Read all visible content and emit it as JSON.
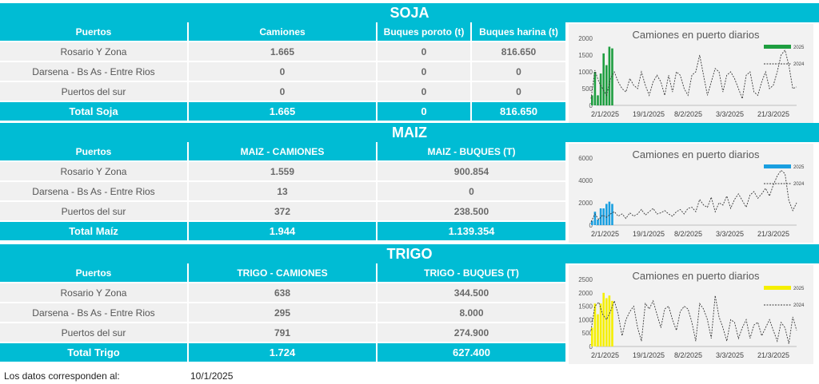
{
  "soja": {
    "title": "SOJA",
    "headers": [
      "Puertos",
      "Camiones",
      "Buques poroto (t)",
      "Buques harina (t)"
    ],
    "rows": [
      [
        "Rosario Y Zona",
        "1.665",
        "0",
        "816.650"
      ],
      [
        "Darsena - Bs As - Entre Rios",
        "0",
        "0",
        "0"
      ],
      [
        "Puertos del sur",
        "0",
        "0",
        "0"
      ]
    ],
    "total": [
      "Total Soja",
      "1.665",
      "0",
      "816.650"
    ]
  },
  "maiz": {
    "title": "MAIZ",
    "headers": [
      "Puertos",
      "MAIZ - CAMIONES",
      "MAIZ - BUQUES (T)"
    ],
    "rows": [
      [
        "Rosario Y Zona",
        "1.559",
        "900.854"
      ],
      [
        "Darsena - Bs As - Entre Rios",
        "13",
        "0"
      ],
      [
        "Puertos del sur",
        "372",
        "238.500"
      ]
    ],
    "total": [
      "Total Maíz",
      "1.944",
      "1.139.354"
    ]
  },
  "trigo": {
    "title": "TRIGO",
    "headers": [
      "Puertos",
      "TRIGO - CAMIONES",
      "TRIGO - BUQUES (T)"
    ],
    "rows": [
      [
        "Rosario Y Zona",
        "638",
        "344.500"
      ],
      [
        "Darsena - Bs As - Entre Rios",
        "295",
        "8.000"
      ],
      [
        "Puertos del sur",
        "791",
        "274.900"
      ]
    ],
    "total": [
      "Total Trigo",
      "1.724",
      "627.400"
    ]
  },
  "footer": {
    "label": "Los datos corresponden al:",
    "date": "10/1/2025"
  },
  "chart_data": [
    {
      "id": "soja",
      "type": "bar",
      "title": "Camiones en puerto diarios",
      "x_tick_labels": [
        "2/1/2025",
        "19/1/2025",
        "8/2/2025",
        "3/3/2025",
        "21/3/2025"
      ],
      "ylim": [
        0,
        2000
      ],
      "y_ticks": [
        0,
        500,
        1000,
        1500,
        2000
      ],
      "legend": [
        "2025",
        "2024"
      ],
      "bar_color": "#1e9e40",
      "series": [
        {
          "name": "2025",
          "values": [
            300,
            1000,
            300,
            950,
            1550,
            1200,
            1750,
            1700
          ]
        },
        {
          "name": "2024",
          "values": [
            200,
            1050,
            700,
            500,
            300,
            800,
            1000,
            700,
            500,
            400,
            800,
            600,
            500,
            1000,
            600,
            300,
            700,
            900,
            700,
            300,
            900,
            400,
            1000,
            900,
            500,
            300,
            900,
            1000,
            1500,
            900,
            300,
            700,
            1100,
            1000,
            400,
            900,
            1000,
            800,
            500,
            200,
            900,
            1000,
            400,
            300,
            700,
            1000,
            500,
            600,
            1000,
            1500,
            1650,
            1200,
            500,
            550
          ]
        }
      ]
    },
    {
      "id": "maiz",
      "type": "bar",
      "title": "Camiones en puerto diarios",
      "x_tick_labels": [
        "2/1/2025",
        "19/1/2025",
        "8/2/2025",
        "3/3/2025",
        "21/3/2025"
      ],
      "ylim": [
        0,
        6000
      ],
      "y_ticks": [
        0,
        2000,
        4000,
        6000
      ],
      "legend": [
        "2025",
        "2024"
      ],
      "bar_color": "#1a9fe0",
      "series": [
        {
          "name": "2025",
          "values": [
            400,
            1200,
            500,
            1500,
            1500,
            1900,
            2100,
            1900
          ]
        },
        {
          "name": "2024",
          "values": [
            300,
            1000,
            500,
            900,
            700,
            1000,
            1200,
            800,
            1000,
            600,
            1100,
            800,
            1000,
            1400,
            900,
            1200,
            1500,
            1000,
            1100,
            1300,
            1000,
            800,
            1200,
            1400,
            1000,
            1500,
            1600,
            1200,
            2300,
            1800,
            1600,
            2500,
            1200,
            2000,
            1800,
            2600,
            1500,
            2300,
            2800,
            2200,
            1600,
            2700,
            3000,
            2400,
            2800,
            3300,
            2600,
            3600,
            4400,
            4900,
            4600,
            2200,
            1300,
            2000
          ]
        }
      ]
    },
    {
      "id": "trigo",
      "type": "bar",
      "title": "Camiones en puerto diarios",
      "x_tick_labels": [
        "2/1/2025",
        "19/1/2025",
        "8/2/2025",
        "3/3/2025",
        "21/3/2025"
      ],
      "ylim": [
        0,
        2500
      ],
      "y_ticks": [
        0,
        500,
        1000,
        1500,
        2000,
        2500
      ],
      "legend": [
        "2025",
        "2024"
      ],
      "bar_color": "#f5ef00",
      "series": [
        {
          "name": "2025",
          "values": [
            700,
            1600,
            1200,
            1600,
            2000,
            1800,
            1900,
            1700
          ]
        },
        {
          "name": "2024",
          "values": [
            600,
            1500,
            1650,
            1200,
            1000,
            1300,
            1700,
            1200,
            400,
            1000,
            1300,
            1500,
            700,
            200,
            1600,
            1400,
            1700,
            1200,
            700,
            1400,
            1500,
            1000,
            600,
            1300,
            1500,
            1400,
            900,
            200,
            1600,
            1400,
            1000,
            300,
            1900,
            1100,
            700,
            200,
            1000,
            900,
            300,
            700,
            1000,
            300,
            800,
            900,
            400,
            700,
            1000,
            600,
            200,
            900,
            700,
            100,
            1100,
            600
          ]
        }
      ]
    }
  ]
}
